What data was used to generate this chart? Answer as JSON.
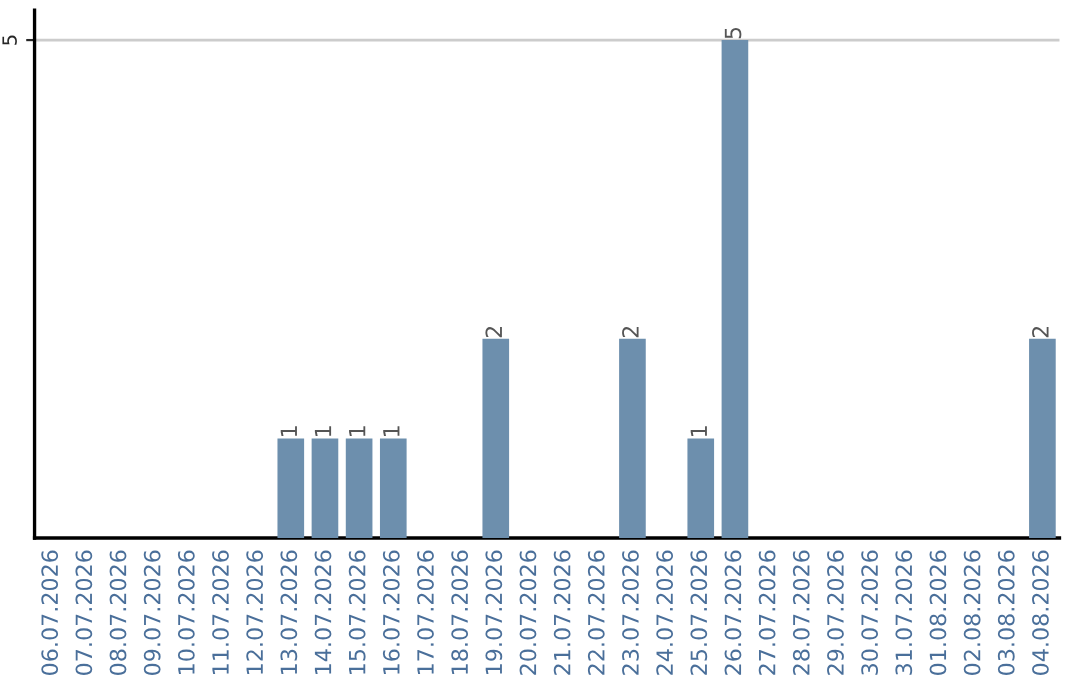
{
  "chart_data": {
    "type": "bar",
    "categories": [
      "06.07.2026",
      "07.07.2026",
      "08.07.2026",
      "09.07.2026",
      "10.07.2026",
      "11.07.2026",
      "12.07.2026",
      "13.07.2026",
      "14.07.2026",
      "15.07.2026",
      "16.07.2026",
      "17.07.2026",
      "18.07.2026",
      "19.07.2026",
      "20.07.2026",
      "21.07.2026",
      "22.07.2026",
      "23.07.2026",
      "24.07.2026",
      "25.07.2026",
      "26.07.2026",
      "27.07.2026",
      "28.07.2026",
      "29.07.2026",
      "30.07.2026",
      "31.07.2026",
      "01.08.2026",
      "02.08.2026",
      "03.08.2026",
      "04.08.2026"
    ],
    "values": [
      0,
      0,
      0,
      0,
      0,
      0,
      0,
      1,
      1,
      1,
      1,
      0,
      0,
      2,
      0,
      0,
      0,
      2,
      0,
      1,
      5,
      0,
      0,
      0,
      0,
      0,
      0,
      0,
      0,
      2
    ],
    "value_labels": [
      null,
      null,
      null,
      null,
      null,
      null,
      null,
      "1",
      "1",
      "1",
      "1",
      null,
      null,
      "2",
      null,
      null,
      null,
      "2",
      null,
      "1",
      "5",
      null,
      null,
      null,
      null,
      null,
      null,
      null,
      null,
      "2"
    ],
    "color": "#6d8fad",
    "ylim": [
      0,
      5.3
    ],
    "yticks": [
      5
    ],
    "grid": "y"
  }
}
